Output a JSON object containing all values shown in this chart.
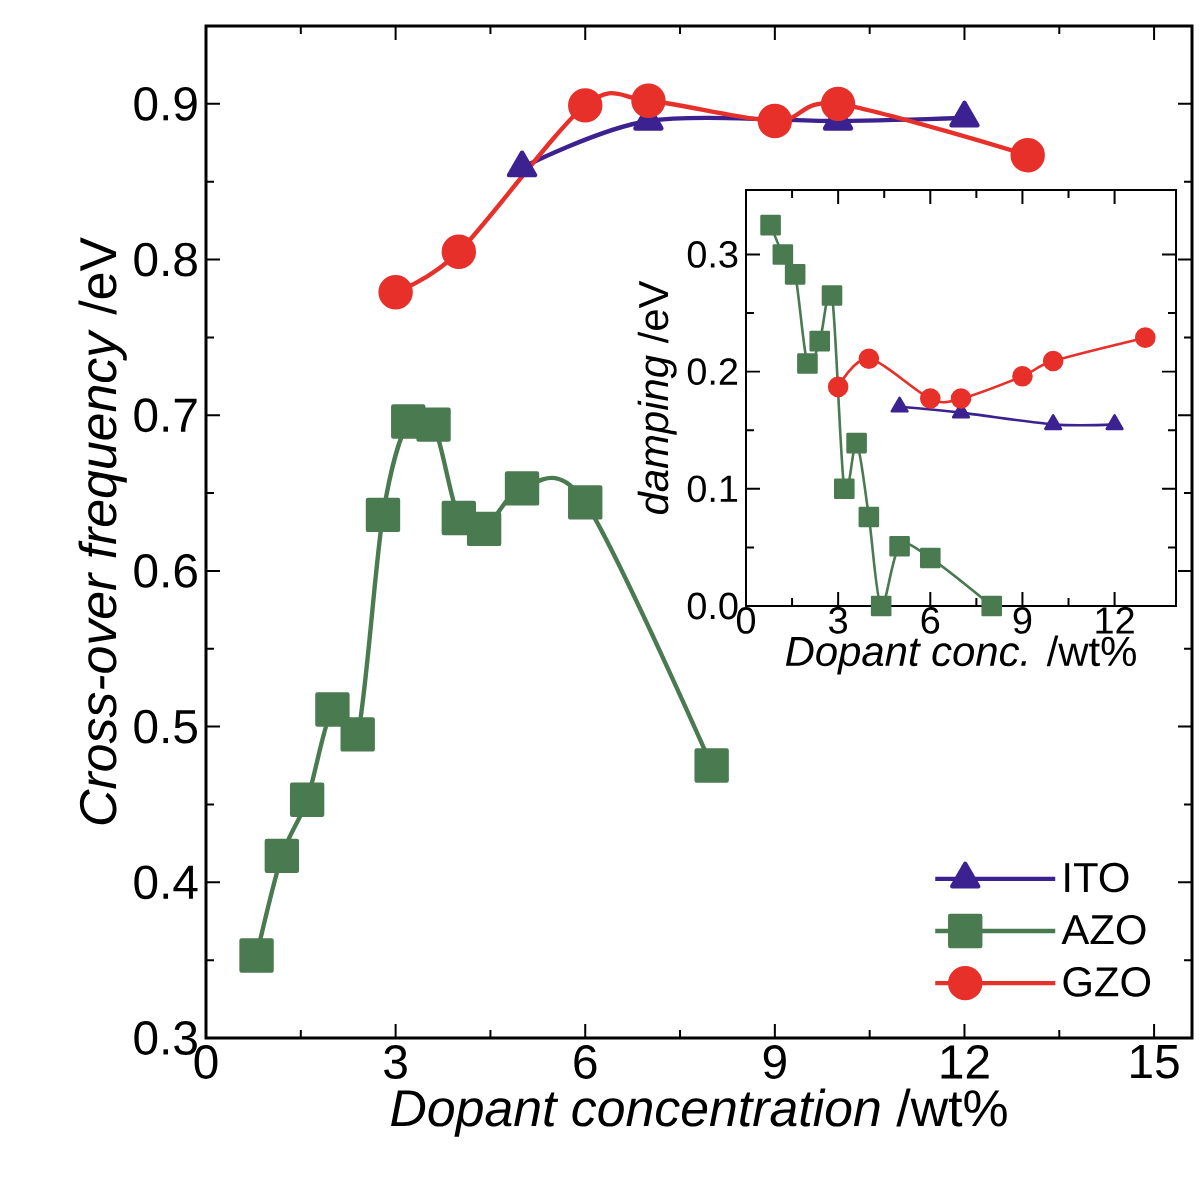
{
  "chart_data": [
    {
      "type": "line",
      "xlabel": "*Dopant concentration* /wt%",
      "ylabel": "*Cross-over frequency* /eV",
      "xlim": [
        0,
        15.6
      ],
      "ylim": [
        0.3,
        0.95
      ],
      "xticks": [
        0,
        3,
        6,
        9,
        12,
        15
      ],
      "yticks": [
        0.3,
        0.4,
        0.5,
        0.6,
        0.7,
        0.8,
        0.9
      ],
      "legend": "bottom right",
      "series": [
        {
          "name": "ITO",
          "color": "#3b2290",
          "marker": "triangle",
          "x": [
            5,
            7,
            10,
            12
          ],
          "values": [
            0.859,
            0.889,
            0.889,
            0.891
          ]
        },
        {
          "name": "AZO",
          "color": "#4a7a50",
          "marker": "square",
          "x": [
            0.8,
            1.2,
            1.6,
            2.0,
            2.4,
            2.8,
            3.2,
            3.6,
            4.0,
            4.4,
            5,
            6,
            8
          ],
          "values": [
            0.353,
            0.417,
            0.453,
            0.511,
            0.495,
            0.636,
            0.696,
            0.694,
            0.634,
            0.627,
            0.653,
            0.644,
            0.475
          ]
        },
        {
          "name": "GZO",
          "color": "#e8302a",
          "marker": "circle",
          "x": [
            3,
            4,
            6,
            7,
            9,
            10,
            13
          ],
          "values": [
            0.779,
            0.805,
            0.899,
            0.902,
            0.889,
            0.9,
            0.867
          ]
        }
      ]
    },
    {
      "type": "line",
      "xlabel": "*Dopant conc.* /wt%",
      "ylabel": "*damping* /eV",
      "xlim": [
        0,
        14
      ],
      "ylim": [
        0,
        0.355
      ],
      "xticks": [
        0,
        3,
        6,
        9,
        12
      ],
      "yticks": [
        {
          "value": 0,
          "label": "0.0"
        },
        0.1,
        0.2,
        0.3
      ],
      "series": [
        {
          "color": "#3b2290",
          "marker": "triangle",
          "x": [
            5,
            7,
            10,
            12
          ],
          "values": [
            0.17,
            0.165,
            0.155,
            0.155
          ]
        },
        {
          "color": "#4a7a50",
          "marker": "square",
          "x": [
            0.8,
            1.2,
            1.6,
            2.0,
            2.4,
            2.8,
            3.2,
            3.6,
            4.0,
            4.4,
            5,
            6,
            8
          ],
          "values": [
            0.325,
            0.3,
            0.283,
            0.207,
            0.226,
            0.265,
            0.1,
            0.139,
            0.076,
            0.0,
            0.051,
            0.041,
            0.0
          ]
        },
        {
          "color": "#e8302a",
          "marker": "circle",
          "x": [
            3,
            4,
            6,
            7,
            9,
            10,
            13
          ],
          "values": [
            0.187,
            0.211,
            0.177,
            0.177,
            0.196,
            0.209,
            0.229
          ]
        }
      ]
    }
  ]
}
